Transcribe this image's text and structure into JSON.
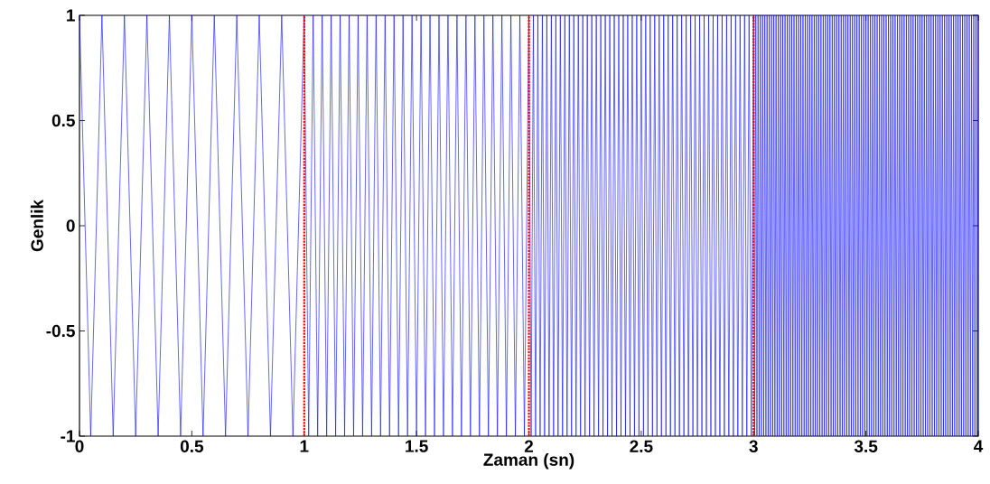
{
  "chart_data": {
    "type": "line",
    "xlabel": "Zaman (sn)",
    "ylabel": "Genlik",
    "xlim": [
      0,
      4
    ],
    "ylim": [
      -1,
      1
    ],
    "xticks": [
      0,
      0.5,
      1,
      1.5,
      2,
      2.5,
      3,
      3.5,
      4
    ],
    "yticks": [
      -1,
      -0.5,
      0,
      0.5,
      1
    ],
    "line_style": "solid",
    "ref_lines": [
      {
        "axis": "x",
        "value": 1,
        "color": "#ff0000",
        "line_style": "dotted"
      },
      {
        "axis": "x",
        "value": 2,
        "color": "#ff0000",
        "line_style": "dotted"
      },
      {
        "axis": "x",
        "value": 3,
        "color": "#ff0000",
        "line_style": "dotted"
      }
    ],
    "series": [
      {
        "color": "#0000ff",
        "x": [
          0,
          0.05,
          0.1,
          0.15,
          0.2,
          0.25,
          0.3,
          0.35,
          0.4,
          0.45,
          0.5,
          0.55,
          0.6,
          0.65,
          0.7,
          0.75,
          0.8,
          0.85,
          0.9,
          0.95,
          1
        ],
        "values": [
          1,
          -1,
          1,
          -1,
          1,
          -1,
          1,
          -1,
          1,
          -1,
          1,
          -1,
          1,
          -1,
          1,
          -1,
          1,
          -1,
          1,
          -1,
          1
        ]
      },
      {
        "color": "#0000ff",
        "x": [
          1,
          1.02,
          1.04,
          1.06,
          1.08,
          1.1,
          1.12,
          1.14,
          1.16,
          1.18,
          1.2,
          1.22,
          1.24,
          1.26,
          1.28,
          1.3,
          1.32,
          1.34,
          1.36,
          1.38,
          1.4,
          1.42,
          1.44,
          1.46,
          1.48,
          1.5,
          1.52,
          1.54,
          1.56,
          1.58,
          1.6,
          1.62,
          1.64,
          1.66,
          1.68,
          1.7,
          1.72,
          1.74,
          1.76,
          1.78,
          1.8,
          1.82,
          1.84,
          1.86,
          1.88,
          1.9,
          1.92,
          1.94,
          1.96,
          1.98,
          2
        ],
        "values": [
          1,
          -1,
          1,
          -1,
          1,
          -1,
          1,
          -1,
          1,
          -1,
          1,
          -1,
          1,
          -1,
          1,
          -1,
          1,
          -1,
          1,
          -1,
          1,
          -1,
          1,
          -1,
          1,
          -1,
          1,
          -1,
          1,
          -1,
          1,
          -1,
          1,
          -1,
          1,
          -1,
          1,
          -1,
          1,
          -1,
          1,
          -1,
          1,
          -1,
          1,
          -1,
          1,
          -1,
          1,
          -1,
          1
        ]
      },
      {
        "color": "#0000ff",
        "x": [
          2,
          2.01,
          2.02,
          2.03,
          2.04,
          2.05,
          2.06,
          2.07,
          2.08,
          2.09,
          2.1,
          2.11,
          2.12,
          2.13,
          2.14,
          2.15,
          2.16,
          2.17,
          2.18,
          2.19,
          2.2,
          2.21,
          2.22,
          2.23,
          2.24,
          2.25,
          2.26,
          2.27,
          2.28,
          2.29,
          2.3,
          2.31,
          2.32,
          2.33,
          2.34,
          2.35,
          2.36,
          2.37,
          2.38,
          2.39,
          2.4,
          2.41,
          2.42,
          2.43,
          2.44,
          2.45,
          2.46,
          2.47,
          2.48,
          2.49,
          2.5,
          2.51,
          2.52,
          2.53,
          2.54,
          2.55,
          2.56,
          2.57,
          2.58,
          2.59,
          2.6,
          2.61,
          2.62,
          2.63,
          2.64,
          2.65,
          2.66,
          2.67,
          2.68,
          2.69,
          2.7,
          2.71,
          2.72,
          2.73,
          2.74,
          2.75,
          2.76,
          2.77,
          2.78,
          2.79,
          2.8,
          2.81,
          2.82,
          2.83,
          2.84,
          2.85,
          2.86,
          2.87,
          2.88,
          2.89,
          2.9,
          2.91,
          2.92,
          2.93,
          2.94,
          2.95,
          2.96,
          2.97,
          2.98,
          2.99,
          3
        ],
        "values": [
          1,
          -1,
          1,
          -1,
          1,
          -1,
          1,
          -1,
          1,
          -1,
          1,
          -1,
          1,
          -1,
          1,
          -1,
          1,
          -1,
          1,
          -1,
          1,
          -1,
          1,
          -1,
          1,
          -1,
          1,
          -1,
          1,
          -1,
          1,
          -1,
          1,
          -1,
          1,
          -1,
          1,
          -1,
          1,
          -1,
          1,
          -1,
          1,
          -1,
          1,
          -1,
          1,
          -1,
          1,
          -1,
          1,
          -1,
          1,
          -1,
          1,
          -1,
          1,
          -1,
          1,
          -1,
          1,
          -1,
          1,
          -1,
          1,
          -1,
          1,
          -1,
          1,
          -1,
          1,
          -1,
          1,
          -1,
          1,
          -1,
          1,
          -1,
          1,
          -1,
          1,
          -1,
          1,
          -1,
          1,
          -1,
          1,
          -1,
          1,
          -1,
          1,
          -1,
          1,
          -1,
          1,
          -1,
          1,
          -1,
          1,
          -1,
          1
        ]
      },
      {
        "color": "#0000ff",
        "x": [
          3,
          3.005,
          3.01,
          3.015,
          3.02,
          3.025,
          3.03,
          3.035,
          3.04,
          3.045,
          3.05,
          3.055,
          3.06,
          3.065,
          3.07,
          3.075,
          3.08,
          3.085,
          3.09,
          3.095,
          3.1,
          3.105,
          3.11,
          3.115,
          3.12,
          3.125,
          3.13,
          3.135,
          3.14,
          3.145,
          3.15,
          3.155,
          3.16,
          3.165,
          3.17,
          3.175,
          3.18,
          3.185,
          3.19,
          3.195,
          3.2,
          3.205,
          3.21,
          3.215,
          3.22,
          3.225,
          3.23,
          3.235,
          3.24,
          3.245,
          3.25,
          3.255,
          3.26,
          3.265,
          3.27,
          3.275,
          3.28,
          3.285,
          3.29,
          3.295,
          3.3,
          3.305,
          3.31,
          3.315,
          3.32,
          3.325,
          3.33,
          3.335,
          3.34,
          3.345,
          3.35,
          3.355,
          3.36,
          3.365,
          3.37,
          3.375,
          3.38,
          3.385,
          3.39,
          3.395,
          3.4,
          3.405,
          3.41,
          3.415,
          3.42,
          3.425,
          3.43,
          3.435,
          3.44,
          3.445,
          3.45,
          3.455,
          3.46,
          3.465,
          3.47,
          3.475,
          3.48,
          3.485,
          3.49,
          3.495,
          3.5,
          3.505,
          3.51,
          3.515,
          3.52,
          3.525,
          3.53,
          3.535,
          3.54,
          3.545,
          3.55,
          3.555,
          3.56,
          3.565,
          3.57,
          3.575,
          3.58,
          3.585,
          3.59,
          3.595,
          3.6,
          3.605,
          3.61,
          3.615,
          3.62,
          3.625,
          3.63,
          3.635,
          3.64,
          3.645,
          3.65,
          3.655,
          3.66,
          3.665,
          3.67,
          3.675,
          3.68,
          3.685,
          3.69,
          3.695,
          3.7,
          3.705,
          3.71,
          3.715,
          3.72,
          3.725,
          3.73,
          3.735,
          3.74,
          3.745,
          3.75,
          3.755,
          3.76,
          3.765,
          3.77,
          3.775,
          3.78,
          3.785,
          3.79,
          3.795,
          3.8,
          3.805,
          3.81,
          3.815,
          3.82,
          3.825,
          3.83,
          3.835,
          3.84,
          3.845,
          3.85,
          3.855,
          3.86,
          3.865,
          3.87,
          3.875,
          3.88,
          3.885,
          3.89,
          3.895,
          3.9,
          3.905,
          3.91,
          3.915,
          3.92,
          3.925,
          3.93,
          3.935,
          3.94,
          3.945,
          3.95,
          3.955,
          3.96,
          3.965,
          3.97,
          3.975,
          3.98,
          3.985,
          3.99,
          3.995,
          4
        ],
        "values": [
          1,
          -1,
          1,
          -1,
          1,
          -1,
          1,
          -1,
          1,
          -1,
          1,
          -1,
          1,
          -1,
          1,
          -1,
          1,
          -1,
          1,
          -1,
          1,
          -1,
          1,
          -1,
          1,
          -1,
          1,
          -1,
          1,
          -1,
          1,
          -1,
          1,
          -1,
          1,
          -1,
          1,
          -1,
          1,
          -1,
          1,
          -1,
          1,
          -1,
          1,
          -1,
          1,
          -1,
          1,
          -1,
          1,
          -1,
          1,
          -1,
          1,
          -1,
          1,
          -1,
          1,
          -1,
          1,
          -1,
          1,
          -1,
          1,
          -1,
          1,
          -1,
          1,
          -1,
          1,
          -1,
          1,
          -1,
          1,
          -1,
          1,
          -1,
          1,
          -1,
          1,
          -1,
          1,
          -1,
          1,
          -1,
          1,
          -1,
          1,
          -1,
          1,
          -1,
          1,
          -1,
          1,
          -1,
          1,
          -1,
          1,
          -1,
          1,
          -1,
          1,
          -1,
          1,
          -1,
          1,
          -1,
          1,
          -1,
          1,
          -1,
          1,
          -1,
          1,
          -1,
          1,
          -1,
          1,
          -1,
          1,
          -1,
          1,
          -1,
          1,
          -1,
          1,
          -1,
          1,
          -1,
          1,
          -1,
          1,
          -1,
          1,
          -1,
          1,
          -1,
          1,
          -1,
          1,
          -1,
          1,
          -1,
          1,
          -1,
          1,
          -1,
          1,
          -1,
          1,
          -1,
          1,
          -1,
          1,
          -1,
          1,
          -1,
          1,
          -1,
          1,
          -1,
          1,
          -1,
          1,
          -1,
          1,
          -1,
          1,
          -1,
          1,
          -1,
          1,
          -1,
          1,
          -1,
          1,
          -1,
          1,
          -1,
          1,
          -1,
          1,
          -1,
          1,
          -1,
          1,
          -1,
          1,
          -1,
          1,
          -1,
          1,
          -1,
          1,
          -1,
          1,
          -1,
          1,
          -1,
          1
        ]
      }
    ]
  }
}
